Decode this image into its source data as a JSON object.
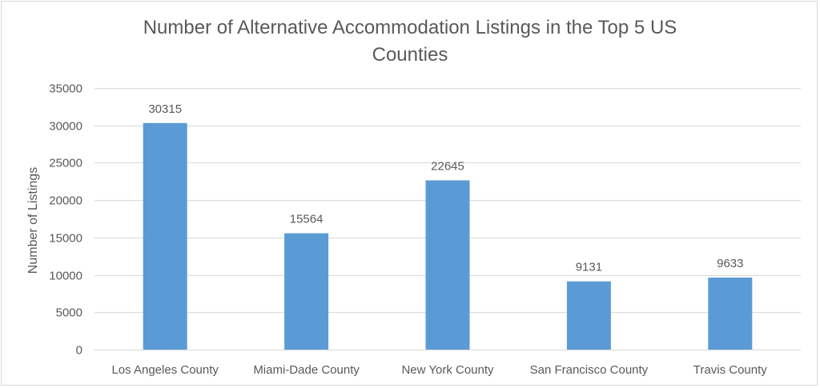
{
  "chart_data": {
    "type": "bar",
    "title_lines": [
      "Number of Alternative Accommodation Listings in the Top 5 US",
      "Counties"
    ],
    "ylabel": "Number of Listings",
    "xlabel": "",
    "categories": [
      "Los Angeles County",
      "Miami-Dade County",
      "New York County",
      "San Francisco County",
      "Travis County"
    ],
    "values": [
      30315,
      15564,
      22645,
      9131,
      9633
    ],
    "data_labels": [
      "30315",
      "15564",
      "22645",
      "9131",
      "9633"
    ],
    "ylim": [
      0,
      35000
    ],
    "yticks": [
      0,
      5000,
      10000,
      15000,
      20000,
      25000,
      30000,
      35000
    ],
    "ytick_labels": [
      "0",
      "5000",
      "10000",
      "15000",
      "20000",
      "25000",
      "30000",
      "35000"
    ],
    "grid": true,
    "legend": "none",
    "bar_color": "#5b9bd5",
    "grid_color": "#d9d9d9",
    "text_color": "#595959"
  }
}
